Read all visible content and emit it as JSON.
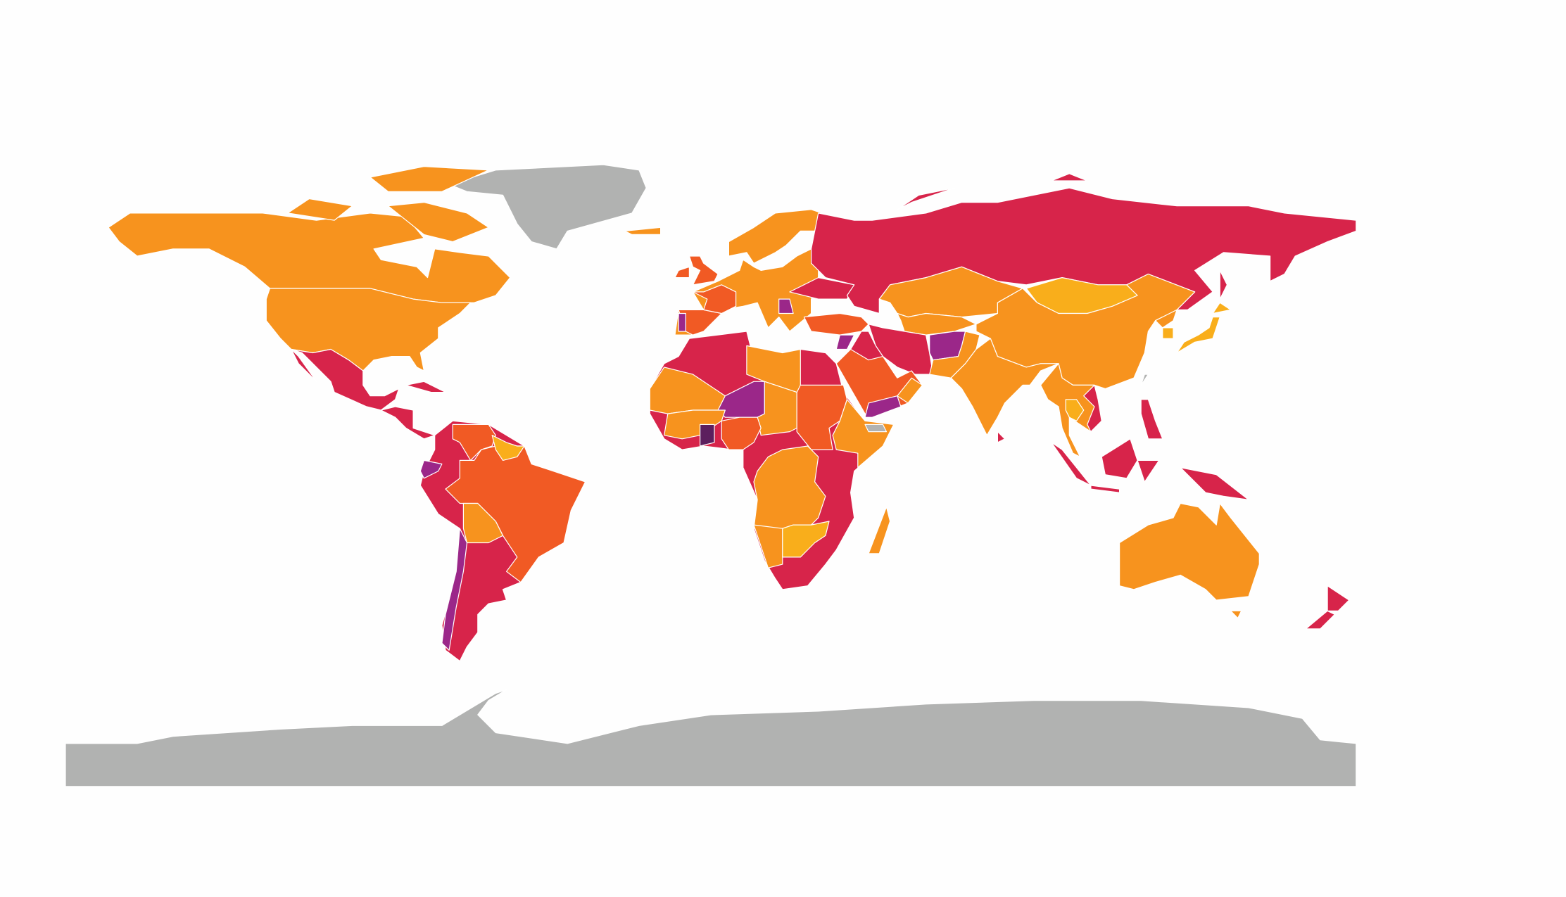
{
  "map_data": {
    "type": "choropleth",
    "projection": "equirectangular",
    "extent": {
      "lon": [
        -180,
        180
      ],
      "lat": [
        -90,
        90
      ]
    },
    "legend": "none",
    "palette": {
      "orange": "#F7931E",
      "yellow": "#F9AE1B",
      "red_orange": "#F15A24",
      "crimson": "#D7244A",
      "purple": "#9B2789",
      "dark_purple": "#5C1F5E",
      "no_data": "#B1B2B1"
    },
    "background": "#FEFEFE",
    "border_color": "#FFFFFF"
  }
}
